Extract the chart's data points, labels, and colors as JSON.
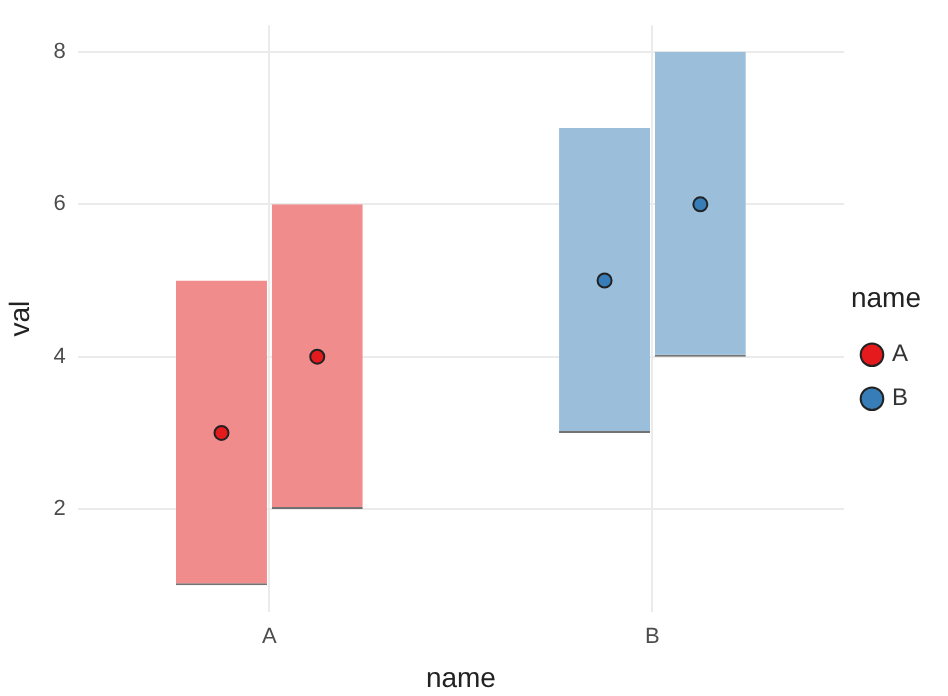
{
  "chart_data": {
    "type": "bar",
    "xlabel": "name",
    "ylabel": "val",
    "legend_title": "name",
    "categories": [
      "A",
      "B"
    ],
    "series": [
      {
        "colors": [
          "#f18c8d",
          "#9bbedb"
        ],
        "base": [
          1,
          3
        ],
        "values": [
          4,
          4
        ]
      },
      {
        "colors": [
          "#f18c8d",
          "#9bbedb"
        ],
        "base": [
          2,
          4
        ],
        "values": [
          4,
          4
        ]
      },
      {
        "type": "scatter",
        "name": "A",
        "color": "#e41a1c",
        "x": [
          "A",
          "A"
        ],
        "values": [
          3,
          4
        ]
      },
      {
        "type": "scatter",
        "name": "B",
        "color": "#377eb8",
        "x": [
          "B",
          "B"
        ],
        "values": [
          5,
          6
        ]
      }
    ],
    "ylim": [
      0.65,
      8.35
    ],
    "yticks": [
      2,
      4,
      6,
      8
    ],
    "grid": true,
    "legend": "right",
    "marker": "circle"
  }
}
